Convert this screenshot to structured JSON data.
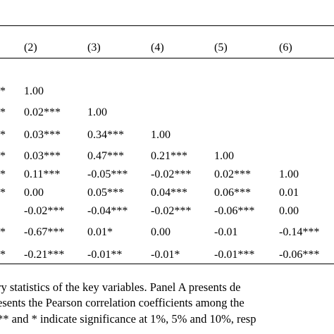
{
  "table": {
    "headers": [
      "(2)",
      "(3)",
      "(4)",
      "(5)",
      "(6)"
    ],
    "left_fragments": [
      "*",
      "*",
      "*",
      "*",
      "*",
      "*",
      "",
      "*",
      "*"
    ],
    "rows": [
      [
        "1.00",
        "",
        "",
        "",
        ""
      ],
      [
        "0.02***",
        "1.00",
        "",
        "",
        ""
      ],
      [
        "0.03***",
        "0.34***",
        "1.00",
        "",
        ""
      ],
      [
        "0.03***",
        "0.47***",
        "0.21***",
        "1.00",
        ""
      ],
      [
        "0.11***",
        "-0.05***",
        "-0.02***",
        "0.02***",
        "1.00"
      ],
      [
        "0.00",
        "0.05***",
        "0.04***",
        "0.06***",
        "0.01"
      ],
      [
        "-0.02***",
        "-0.04***",
        "-0.02***",
        "-0.06***",
        "0.00"
      ],
      [
        "-0.67***",
        "0.01*",
        "0.00",
        "-0.01",
        "-0.14***"
      ],
      [
        "-0.21***",
        "-0.01**",
        "-0.01*",
        "-0.01***",
        "-0.06***"
      ]
    ]
  },
  "caption": {
    "lines": [
      "ry statistics of the key variables. Panel A presents de",
      "esents the Pearson correlation coefficients among the",
      "** and * indicate significance at 1%, 5% and 10%, resp"
    ]
  }
}
